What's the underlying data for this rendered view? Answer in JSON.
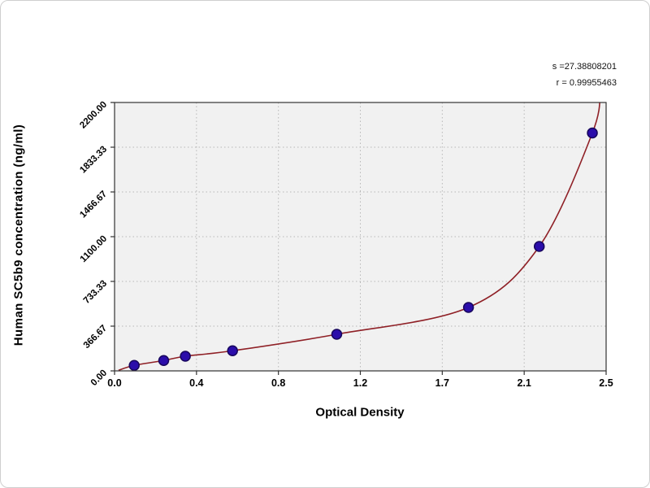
{
  "chart_data": {
    "type": "scatter",
    "title": "",
    "xlabel": "Optical Density",
    "ylabel": "Human SC5b9 concentration (ng/ml)",
    "xlim": [
      0,
      2.5
    ],
    "ylim": [
      0,
      2200
    ],
    "x_ticks": [
      "0.0",
      "0.4",
      "0.8",
      "1.2",
      "1.7",
      "2.1",
      "2.5"
    ],
    "y_ticks": [
      "0.00",
      "366.67",
      "733.33",
      "1100.00",
      "1466.67",
      "1833.33",
      "2200.00"
    ],
    "grid": true,
    "legend": false,
    "plot_bg": "#f1f1f1",
    "grid_color": "#b8b8b8",
    "axis_color": "#333333",
    "point_color": "#2b0daa",
    "point_stroke": "#17065c",
    "curve_color": "#8f2026",
    "points": [
      [
        0.1,
        45
      ],
      [
        0.25,
        85
      ],
      [
        0.36,
        120
      ],
      [
        0.6,
        165
      ],
      [
        1.13,
        300
      ],
      [
        1.8,
        520
      ],
      [
        2.16,
        1020
      ],
      [
        2.43,
        1950
      ]
    ],
    "curve_anchors": [
      [
        0.02,
        5
      ],
      [
        0.1,
        45
      ],
      [
        0.25,
        85
      ],
      [
        0.36,
        120
      ],
      [
        0.6,
        165
      ],
      [
        1.13,
        300
      ],
      [
        1.8,
        520
      ],
      [
        2.16,
        1020
      ],
      [
        2.43,
        1950
      ],
      [
        2.47,
        2300
      ]
    ],
    "annotations": {
      "s": "s =27.38808201",
      "r": "r = 0.99955463"
    }
  }
}
